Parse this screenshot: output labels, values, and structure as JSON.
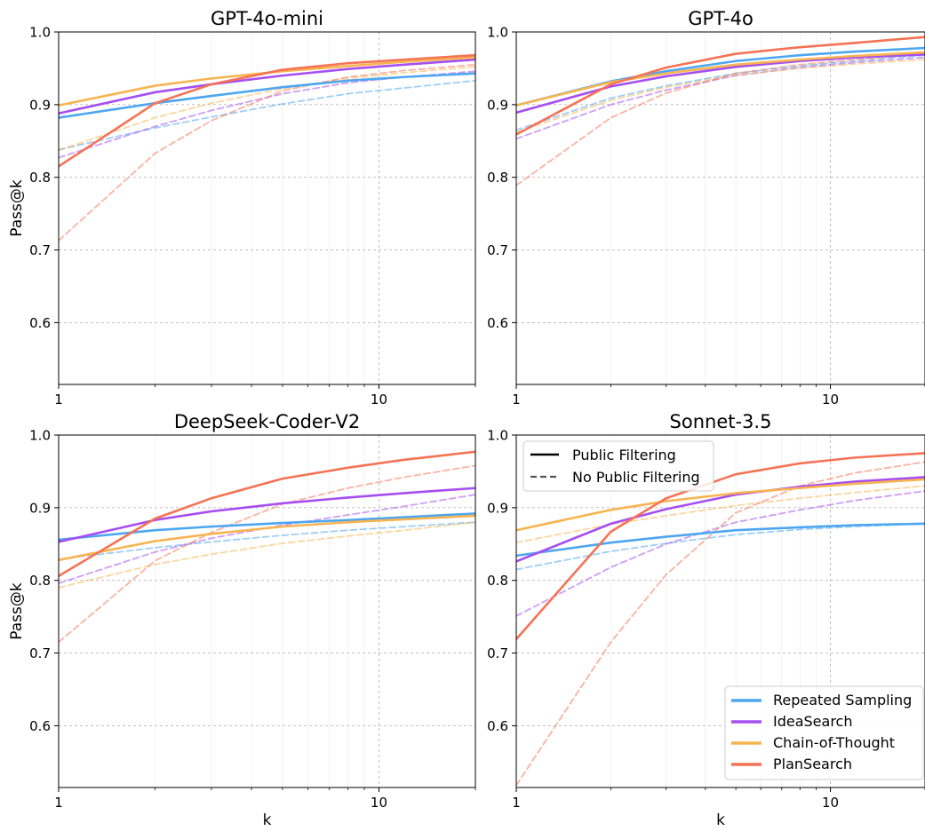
{
  "figure": {
    "shared_ylabel": "Pass@k",
    "shared_xlabel": "k",
    "style_legend": [
      {
        "label": "Public Filtering",
        "style": "solid"
      },
      {
        "label": "No Public Filtering",
        "style": "dashed"
      }
    ],
    "method_legend": [
      {
        "label": "Repeated Sampling",
        "color": "#4da6f0"
      },
      {
        "label": "IdeaSearch",
        "color": "#a64ef0"
      },
      {
        "label": "Chain-of-Thought",
        "color": "#f7b450"
      },
      {
        "label": "PlanSearch",
        "color": "#f57355"
      }
    ]
  },
  "chart_data": [
    {
      "type": "line",
      "title": "GPT-4o-mini",
      "xlabel": "",
      "ylabel": "Pass@k",
      "xscale": "log",
      "xlim": [
        1,
        20
      ],
      "ylim": [
        0.515,
        1.0
      ],
      "xticks": [
        1,
        10
      ],
      "xtick_labels": [
        "1",
        "10"
      ],
      "yticks": [
        0.6,
        0.7,
        0.8,
        0.9,
        1.0
      ],
      "ytick_labels": [
        "0.6",
        "0.7",
        "0.8",
        "0.9",
        "1.0"
      ],
      "grid": true,
      "series": [
        {
          "name": "Repeated Sampling",
          "filter": "public",
          "color": "#4da6f0",
          "x": [
            1,
            2,
            3,
            5,
            8,
            12,
            20
          ],
          "y": [
            0.882,
            0.902,
            0.912,
            0.924,
            0.933,
            0.938,
            0.943
          ]
        },
        {
          "name": "IdeaSearch",
          "filter": "public",
          "color": "#a64ef0",
          "x": [
            1,
            2,
            3,
            5,
            8,
            12,
            20
          ],
          "y": [
            0.888,
            0.917,
            0.928,
            0.94,
            0.949,
            0.955,
            0.962
          ]
        },
        {
          "name": "Chain-of-Thought",
          "filter": "public",
          "color": "#f7b450",
          "x": [
            1,
            2,
            3,
            5,
            8,
            12,
            20
          ],
          "y": [
            0.899,
            0.926,
            0.936,
            0.946,
            0.953,
            0.959,
            0.965
          ]
        },
        {
          "name": "PlanSearch",
          "filter": "public",
          "color": "#f57355",
          "x": [
            1,
            2,
            3,
            5,
            8,
            12,
            20
          ],
          "y": [
            0.815,
            0.902,
            0.928,
            0.948,
            0.957,
            0.962,
            0.968
          ]
        },
        {
          "name": "Repeated Sampling",
          "filter": "none",
          "color": "#4da6f0",
          "x": [
            1,
            2,
            3,
            5,
            8,
            12,
            20
          ],
          "y": [
            0.838,
            0.868,
            0.883,
            0.901,
            0.915,
            0.923,
            0.933
          ]
        },
        {
          "name": "IdeaSearch",
          "filter": "none",
          "color": "#a64ef0",
          "x": [
            1,
            2,
            3,
            5,
            8,
            12,
            20
          ],
          "y": [
            0.827,
            0.87,
            0.892,
            0.915,
            0.93,
            0.938,
            0.946
          ]
        },
        {
          "name": "Chain-of-Thought",
          "filter": "none",
          "color": "#f7b450",
          "x": [
            1,
            2,
            3,
            5,
            8,
            12,
            20
          ],
          "y": [
            0.837,
            0.882,
            0.902,
            0.922,
            0.936,
            0.944,
            0.952
          ]
        },
        {
          "name": "PlanSearch",
          "filter": "none",
          "color": "#f57355",
          "x": [
            1,
            2,
            3,
            5,
            8,
            12,
            20
          ],
          "y": [
            0.713,
            0.833,
            0.878,
            0.919,
            0.938,
            0.947,
            0.955
          ]
        }
      ]
    },
    {
      "type": "line",
      "title": "GPT-4o",
      "xlabel": "",
      "ylabel": "",
      "xscale": "log",
      "xlim": [
        1,
        20
      ],
      "ylim": [
        0.515,
        1.0
      ],
      "xticks": [
        1,
        10
      ],
      "xtick_labels": [
        "1",
        "10"
      ],
      "yticks": [
        0.6,
        0.7,
        0.8,
        0.9,
        1.0
      ],
      "ytick_labels": [
        "0.6",
        "0.7",
        "0.8",
        "0.9",
        "1.0"
      ],
      "grid": true,
      "series": [
        {
          "name": "Repeated Sampling",
          "filter": "public",
          "color": "#4da6f0",
          "x": [
            1,
            2,
            3,
            5,
            8,
            12,
            20
          ],
          "y": [
            0.899,
            0.932,
            0.946,
            0.96,
            0.968,
            0.973,
            0.978
          ]
        },
        {
          "name": "IdeaSearch",
          "filter": "public",
          "color": "#a64ef0",
          "x": [
            1,
            2,
            3,
            5,
            8,
            12,
            20
          ],
          "y": [
            0.889,
            0.925,
            0.939,
            0.952,
            0.96,
            0.965,
            0.969
          ]
        },
        {
          "name": "Chain-of-Thought",
          "filter": "public",
          "color": "#f7b450",
          "x": [
            1,
            2,
            3,
            5,
            8,
            12,
            20
          ],
          "y": [
            0.899,
            0.931,
            0.943,
            0.955,
            0.962,
            0.967,
            0.972
          ]
        },
        {
          "name": "PlanSearch",
          "filter": "public",
          "color": "#f57355",
          "x": [
            1,
            2,
            3,
            5,
            8,
            12,
            20
          ],
          "y": [
            0.859,
            0.928,
            0.951,
            0.97,
            0.979,
            0.985,
            0.993
          ]
        },
        {
          "name": "Repeated Sampling",
          "filter": "none",
          "color": "#4da6f0",
          "x": [
            1,
            2,
            3,
            5,
            8,
            12,
            20
          ],
          "y": [
            0.865,
            0.909,
            0.926,
            0.943,
            0.953,
            0.96,
            0.968
          ]
        },
        {
          "name": "IdeaSearch",
          "filter": "none",
          "color": "#a64ef0",
          "x": [
            1,
            2,
            3,
            5,
            8,
            12,
            20
          ],
          "y": [
            0.853,
            0.9,
            0.92,
            0.94,
            0.951,
            0.958,
            0.965
          ]
        },
        {
          "name": "Chain-of-Thought",
          "filter": "none",
          "color": "#f7b450",
          "x": [
            1,
            2,
            3,
            5,
            8,
            12,
            20
          ],
          "y": [
            0.862,
            0.906,
            0.924,
            0.941,
            0.95,
            0.956,
            0.962
          ]
        },
        {
          "name": "PlanSearch",
          "filter": "none",
          "color": "#f57355",
          "x": [
            1,
            2,
            3,
            5,
            8,
            12,
            20
          ],
          "y": [
            0.789,
            0.882,
            0.916,
            0.943,
            0.955,
            0.962,
            0.97
          ]
        }
      ]
    },
    {
      "type": "line",
      "title": "DeepSeek-Coder-V2",
      "xlabel": "k",
      "ylabel": "Pass@k",
      "xscale": "log",
      "xlim": [
        1,
        20
      ],
      "ylim": [
        0.515,
        1.0
      ],
      "xticks": [
        1,
        10
      ],
      "xtick_labels": [
        "1",
        "10"
      ],
      "yticks": [
        0.6,
        0.7,
        0.8,
        0.9,
        1.0
      ],
      "ytick_labels": [
        "0.6",
        "0.7",
        "0.8",
        "0.9",
        "1.0"
      ],
      "grid": true,
      "series": [
        {
          "name": "Repeated Sampling",
          "filter": "public",
          "color": "#4da6f0",
          "x": [
            1,
            2,
            3,
            5,
            8,
            12,
            20
          ],
          "y": [
            0.856,
            0.869,
            0.874,
            0.879,
            0.883,
            0.887,
            0.892
          ]
        },
        {
          "name": "IdeaSearch",
          "filter": "public",
          "color": "#a64ef0",
          "x": [
            1,
            2,
            3,
            5,
            8,
            12,
            20
          ],
          "y": [
            0.853,
            0.883,
            0.895,
            0.906,
            0.914,
            0.92,
            0.927
          ]
        },
        {
          "name": "Chain-of-Thought",
          "filter": "public",
          "color": "#f7b450",
          "x": [
            1,
            2,
            3,
            5,
            8,
            12,
            20
          ],
          "y": [
            0.828,
            0.854,
            0.864,
            0.874,
            0.88,
            0.884,
            0.889
          ]
        },
        {
          "name": "PlanSearch",
          "filter": "public",
          "color": "#f57355",
          "x": [
            1,
            2,
            3,
            5,
            8,
            12,
            20
          ],
          "y": [
            0.806,
            0.885,
            0.913,
            0.94,
            0.955,
            0.966,
            0.977
          ]
        },
        {
          "name": "Repeated Sampling",
          "filter": "none",
          "color": "#4da6f0",
          "x": [
            1,
            2,
            3,
            5,
            8,
            12,
            20
          ],
          "y": [
            0.829,
            0.845,
            0.853,
            0.862,
            0.869,
            0.874,
            0.88
          ]
        },
        {
          "name": "IdeaSearch",
          "filter": "none",
          "color": "#a64ef0",
          "x": [
            1,
            2,
            3,
            5,
            8,
            12,
            20
          ],
          "y": [
            0.796,
            0.839,
            0.858,
            0.876,
            0.89,
            0.902,
            0.918
          ]
        },
        {
          "name": "Chain-of-Thought",
          "filter": "none",
          "color": "#f7b450",
          "x": [
            1,
            2,
            3,
            5,
            8,
            12,
            20
          ],
          "y": [
            0.79,
            0.822,
            0.836,
            0.851,
            0.861,
            0.869,
            0.88
          ]
        },
        {
          "name": "PlanSearch",
          "filter": "none",
          "color": "#f57355",
          "x": [
            1,
            2,
            3,
            5,
            8,
            12,
            20
          ],
          "y": [
            0.715,
            0.827,
            0.866,
            0.905,
            0.927,
            0.942,
            0.958
          ]
        }
      ]
    },
    {
      "type": "line",
      "title": "Sonnet-3.5",
      "xlabel": "k",
      "ylabel": "",
      "xscale": "log",
      "xlim": [
        1,
        20
      ],
      "ylim": [
        0.515,
        1.0
      ],
      "xticks": [
        1,
        10
      ],
      "xtick_labels": [
        "1",
        "10"
      ],
      "yticks": [
        0.6,
        0.7,
        0.8,
        0.9,
        1.0
      ],
      "ytick_labels": [
        "0.6",
        "0.7",
        "0.8",
        "0.9",
        "1.0"
      ],
      "grid": true,
      "legend_position": "lower-right",
      "style_legend_position": "upper-left",
      "series": [
        {
          "name": "Repeated Sampling",
          "filter": "public",
          "color": "#4da6f0",
          "x": [
            1,
            2,
            3,
            5,
            8,
            12,
            20
          ],
          "y": [
            0.834,
            0.852,
            0.86,
            0.869,
            0.873,
            0.876,
            0.878
          ]
        },
        {
          "name": "IdeaSearch",
          "filter": "public",
          "color": "#a64ef0",
          "x": [
            1,
            2,
            3,
            5,
            8,
            12,
            20
          ],
          "y": [
            0.826,
            0.878,
            0.898,
            0.918,
            0.929,
            0.936,
            0.942
          ]
        },
        {
          "name": "Chain-of-Thought",
          "filter": "public",
          "color": "#f7b450",
          "x": [
            1,
            2,
            3,
            5,
            8,
            12,
            20
          ],
          "y": [
            0.869,
            0.897,
            0.909,
            0.92,
            0.927,
            0.933,
            0.939
          ]
        },
        {
          "name": "PlanSearch",
          "filter": "public",
          "color": "#f57355",
          "x": [
            1,
            2,
            3,
            5,
            8,
            12,
            20
          ],
          "y": [
            0.719,
            0.867,
            0.913,
            0.946,
            0.961,
            0.969,
            0.975
          ]
        },
        {
          "name": "Repeated Sampling",
          "filter": "none",
          "color": "#4da6f0",
          "x": [
            1,
            2,
            3,
            5,
            8,
            12,
            20
          ],
          "y": [
            0.815,
            0.84,
            0.851,
            0.863,
            0.87,
            0.874,
            0.878
          ]
        },
        {
          "name": "IdeaSearch",
          "filter": "none",
          "color": "#a64ef0",
          "x": [
            1,
            2,
            3,
            5,
            8,
            12,
            20
          ],
          "y": [
            0.751,
            0.818,
            0.85,
            0.88,
            0.897,
            0.91,
            0.923
          ]
        },
        {
          "name": "Chain-of-Thought",
          "filter": "none",
          "color": "#f7b450",
          "x": [
            1,
            2,
            3,
            5,
            8,
            12,
            20
          ],
          "y": [
            0.852,
            0.877,
            0.889,
            0.903,
            0.913,
            0.921,
            0.93
          ]
        },
        {
          "name": "PlanSearch",
          "filter": "none",
          "color": "#f57355",
          "x": [
            1,
            2,
            3,
            5,
            8,
            12,
            20
          ],
          "y": [
            0.518,
            0.715,
            0.808,
            0.893,
            0.93,
            0.948,
            0.963
          ]
        }
      ]
    }
  ]
}
